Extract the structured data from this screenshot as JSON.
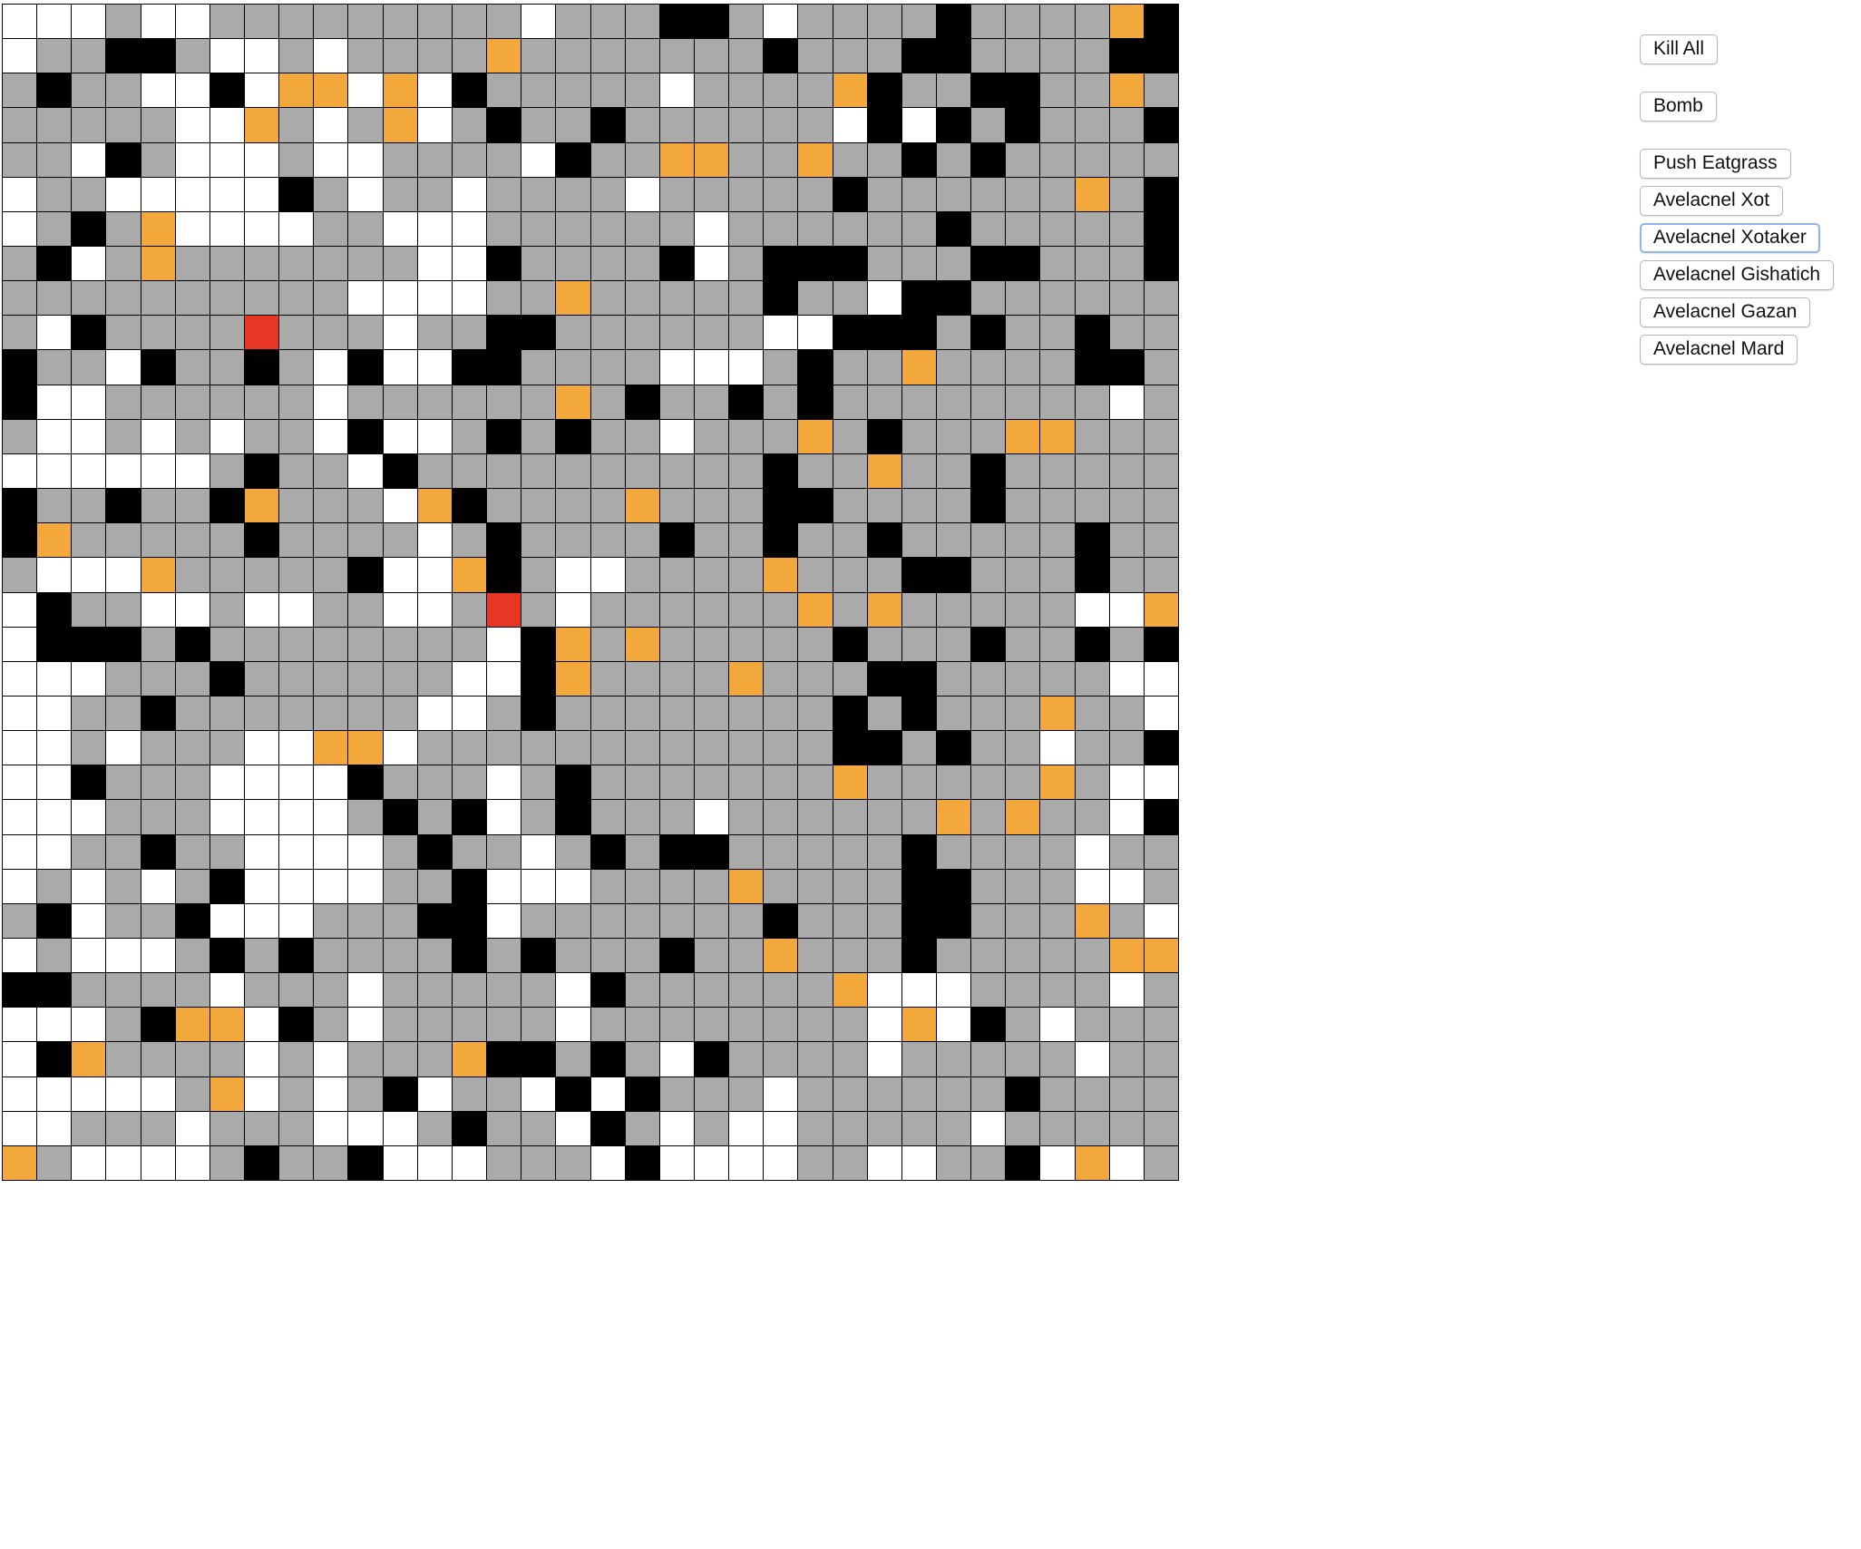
{
  "palette": {
    "grass": "#aaaaaa",
    "empty": "#ffffff",
    "wall": "#000000",
    "creature": "#f2a83b",
    "predator": "#e83625"
  },
  "legend": {
    "0": "grass",
    "1": "empty",
    "2": "wall",
    "3": "creature",
    "4": "predator"
  },
  "board": {
    "cols": 34,
    "rows": 34,
    "cells": [
      "1110110000000001000220100002000032",
      "1002201101000030000000200022000022",
      "0200112133131200000100003200220030",
      "0000011301031020020000001212020002",
      "0012011101100001200330030020200000",
      "1001111120100100001000002000000302",
      "1020311110011100000010000002000002",
      "0210300000001120000210222000220002",
      "0000000000111100300000200122000000",
      "0120000400010022000000112220200200",
      "2001200201211220000111020030000220",
      "2110000001000000302002020000000010",
      "0110101001211020200100030200033000",
      "1111110200120000000000200300200000",
      "2002002300013200003000220000200000",
      "2300000200001020000200200200000200",
      "0111300000211320110000300022000200",
      "1200110110011040100000030300000113",
      "1222020000000012303000002000200202",
      "1110002000000112300003000220000011",
      "1100200000001102000000002020003001",
      "1101000113310000000000002202001002",
      "1120001111200010200000003000003011",
      "1110001111020210200010000003030012",
      "1100200111102001020220000020000100",
      "1010102111100211100003000022000110",
      "0210021110002210000000200022000301",
      "1011102020000202000200300020000033",
      "2200001000100000120000003111000010",
      "1110233120100000100000000131201000",
      "1230000101000322020120000100000100",
      "1111103101021001212000100000020000",
      "1100010001110200120101100000100000",
      "3011110200211100012111100110021310"
    ]
  },
  "controls": {
    "kill_all": "Kill All",
    "bomb": "Bomb",
    "push_eatgrass": "Push Eatgrass",
    "avelacnel_xot": "Avelacnel Xot",
    "avelacnel_xotaker": "Avelacnel Xotaker",
    "avelacnel_gishatich": "Avelacnel Gishatich",
    "avelacnel_gazan": "Avelacnel Gazan",
    "avelacnel_mard": "Avelacnel Mard"
  }
}
